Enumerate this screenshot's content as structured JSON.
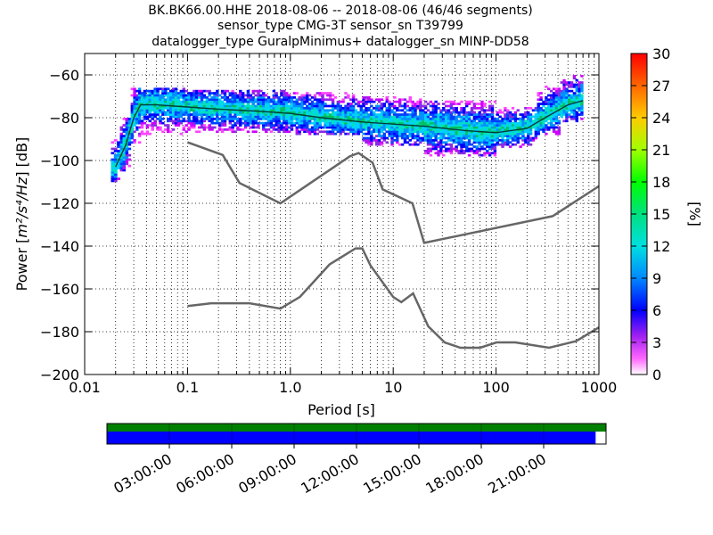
{
  "title_lines": [
    "BK.BK66.00.HHE   2018-08-06 -- 2018-08-06  (46/46 segments)",
    "sensor_type CMG-3T sensor_sn T39799",
    "datalogger_type GuralpMinimus+ datalogger_sn MINP-DD58"
  ],
  "chart_data": {
    "type": "heatmap",
    "xlabel": "Period [s]",
    "ylabel_main": "Power [",
    "ylabel_unit": "m²/s⁴/Hz",
    "ylabel_suffix": "] [dB]",
    "x_scale": "log",
    "xlim": [
      0.01,
      1000
    ],
    "ylim": [
      -200,
      -50
    ],
    "x_ticks": [
      0.01,
      0.1,
      1,
      10,
      100,
      1000
    ],
    "x_tick_labels": [
      "0.01",
      "0.1",
      "1.0",
      "10",
      "100",
      "1000"
    ],
    "y_ticks": [
      -60,
      -80,
      -100,
      -120,
      -140,
      -160,
      -180,
      -200
    ],
    "y_tick_labels": [
      "−60",
      "−80",
      "−100",
      "−120",
      "−140",
      "−160",
      "−180",
      "−200"
    ],
    "grid": true,
    "colorbar": {
      "label": "[%]",
      "range": [
        0,
        30
      ],
      "ticks": [
        0,
        3,
        6,
        9,
        12,
        15,
        18,
        21,
        24,
        27,
        30
      ],
      "tick_labels": [
        "0",
        "3",
        "6",
        "9",
        "12",
        "15",
        "18",
        "21",
        "24",
        "27",
        "30"
      ]
    },
    "psd_mode_curve": [
      [
        0.02,
        -103
      ],
      [
        0.025,
        -93
      ],
      [
        0.03,
        -80
      ],
      [
        0.035,
        -74
      ],
      [
        0.05,
        -74
      ],
      [
        0.1,
        -75
      ],
      [
        0.2,
        -76
      ],
      [
        0.5,
        -77
      ],
      [
        1,
        -78
      ],
      [
        2,
        -80
      ],
      [
        5,
        -82
      ],
      [
        10,
        -83
      ],
      [
        20,
        -84
      ],
      [
        50,
        -86
      ],
      [
        100,
        -87
      ],
      [
        200,
        -85
      ],
      [
        300,
        -80
      ],
      [
        500,
        -74
      ],
      [
        700,
        -72
      ]
    ],
    "nhnm": [
      [
        0.1,
        -91.5
      ],
      [
        0.22,
        -97.4
      ],
      [
        0.32,
        -110.5
      ],
      [
        0.8,
        -120
      ],
      [
        3.8,
        -98
      ],
      [
        4.6,
        -96.5
      ],
      [
        6.3,
        -101
      ],
      [
        7.9,
        -113.5
      ],
      [
        15.4,
        -120
      ],
      [
        20,
        -138.5
      ],
      [
        354.8,
        -126
      ],
      [
        1000,
        -112
      ]
    ],
    "nlnm": [
      [
        0.1,
        -168
      ],
      [
        0.17,
        -166.7
      ],
      [
        0.4,
        -166.7
      ],
      [
        0.8,
        -169.2
      ],
      [
        1.24,
        -163.7
      ],
      [
        2.4,
        -148.6
      ],
      [
        4.3,
        -141.1
      ],
      [
        5,
        -141.1
      ],
      [
        6,
        -149
      ],
      [
        10,
        -163.8
      ],
      [
        12,
        -166.2
      ],
      [
        15.6,
        -162.1
      ],
      [
        21.9,
        -177.5
      ],
      [
        31.6,
        -185
      ],
      [
        45,
        -187.5
      ],
      [
        70,
        -187.5
      ],
      [
        101,
        -185
      ],
      [
        154,
        -185
      ],
      [
        328,
        -187.5
      ],
      [
        600,
        -184.4
      ],
      [
        1000,
        -178
      ]
    ],
    "histogram_bands": [
      {
        "p_min": 0.018,
        "p_max": 0.022,
        "db_min": -110,
        "db_max": -90
      },
      {
        "p_min": 0.022,
        "p_max": 0.028,
        "db_min": -105,
        "db_max": -80
      },
      {
        "p_min": 0.028,
        "p_max": 0.035,
        "db_min": -92,
        "db_max": -66
      },
      {
        "p_min": 0.035,
        "p_max": 0.1,
        "db_min": -88,
        "db_max": -66
      },
      {
        "p_min": 0.1,
        "p_max": 1,
        "db_min": -87,
        "db_max": -67
      },
      {
        "p_min": 1,
        "p_max": 5,
        "db_min": -88,
        "db_max": -68
      },
      {
        "p_min": 5,
        "p_max": 20,
        "db_min": -93,
        "db_max": -70
      },
      {
        "p_min": 20,
        "p_max": 100,
        "db_min": -98,
        "db_max": -72
      },
      {
        "p_min": 100,
        "p_max": 250,
        "db_min": -94,
        "db_max": -75
      },
      {
        "p_min": 250,
        "p_max": 420,
        "db_min": -88,
        "db_max": -65
      },
      {
        "p_min": 420,
        "p_max": 700,
        "db_min": -82,
        "db_max": -60
      }
    ],
    "timeline": {
      "tick_labels": [
        "03:00:00",
        "06:00:00",
        "09:00:00",
        "12:00:00",
        "15:00:00",
        "18:00:00",
        "21:00:00"
      ],
      "tick_hours": [
        3,
        6,
        9,
        12,
        15,
        18,
        21
      ],
      "span_hours": [
        0,
        24
      ],
      "data_coverage_end_hours": 23.5,
      "coverage_color": "#008000",
      "psd_color": "#0000ff"
    }
  }
}
